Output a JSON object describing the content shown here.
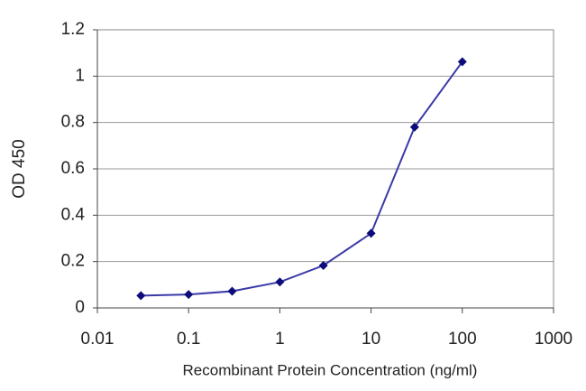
{
  "chart_data": {
    "type": "line",
    "y_label": "OD 450",
    "x_label": "Recombinant Protein Concentration (ng/ml)",
    "x": [
      0.03,
      0.1,
      0.3,
      1,
      3,
      10,
      30,
      100
    ],
    "values": [
      0.053,
      0.058,
      0.072,
      0.112,
      0.183,
      0.322,
      0.78,
      1.062
    ],
    "color": "#3a3aa8",
    "marker_color": "#0c0c7a",
    "xlim": [
      0.01,
      1000
    ],
    "xticks": [
      0.01,
      0.1,
      1,
      10,
      100,
      1000
    ],
    "xlog": true,
    "ylim": [
      0,
      1.2
    ],
    "yticks": [
      0,
      0.2,
      0.4,
      0.6,
      0.8,
      1,
      1.2
    ],
    "grid": true
  }
}
